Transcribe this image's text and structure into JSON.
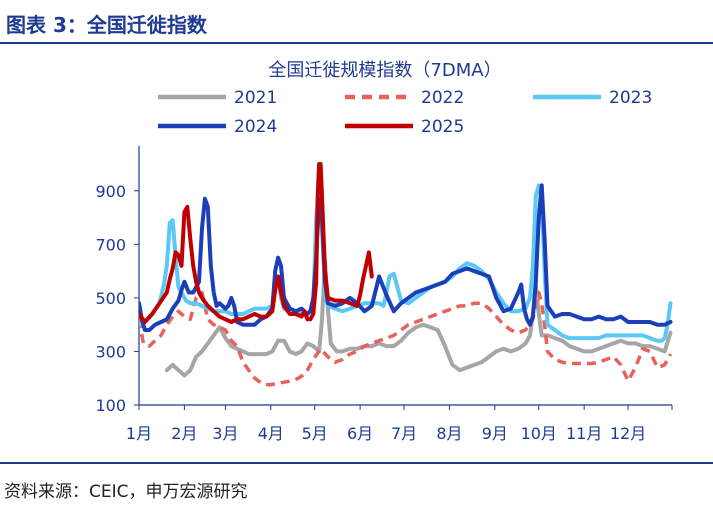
{
  "figure": {
    "title": "图表 3：全国迁徙指数",
    "source": "资料来源：CEIC，申万宏源研究"
  },
  "colors": {
    "accent": "#1f3a93",
    "axis": "#1f3a93",
    "text": "#1f3a93"
  },
  "chart_data": {
    "type": "line",
    "title": "全国迁徙规模指数（7DMA）",
    "xlabel": "",
    "ylabel": "",
    "x_unit": "day_of_year",
    "xlim": [
      1,
      365
    ],
    "ylim": [
      100,
      1000
    ],
    "yticks": [
      100,
      300,
      500,
      700,
      900
    ],
    "xtick_labels": [
      "1月",
      "2月",
      "3月",
      "4月",
      "5月",
      "6月",
      "7月",
      "8月",
      "9月",
      "10月",
      "11月",
      "12月"
    ],
    "xtick_days": [
      1,
      32,
      60,
      91,
      121,
      152,
      182,
      213,
      244,
      274,
      305,
      335
    ],
    "grid": false,
    "legend_position": "top",
    "series": [
      {
        "name": "2021",
        "color": "#a6a6a6",
        "dash": "",
        "width": 4,
        "x": [
          20,
          24,
          28,
          32,
          36,
          40,
          44,
          48,
          52,
          56,
          60,
          64,
          68,
          72,
          76,
          80,
          84,
          88,
          92,
          96,
          100,
          104,
          108,
          112,
          116,
          120,
          124,
          126,
          128,
          130,
          132,
          136,
          140,
          145,
          150,
          155,
          160,
          165,
          170,
          175,
          180,
          185,
          190,
          195,
          200,
          205,
          210,
          215,
          220,
          225,
          230,
          235,
          240,
          245,
          250,
          255,
          260,
          265,
          268,
          270,
          272,
          274,
          276,
          280,
          285,
          290,
          295,
          300,
          305,
          310,
          315,
          320,
          325,
          330,
          335,
          340,
          345,
          350,
          355,
          360,
          364
        ],
        "y": [
          230,
          250,
          230,
          210,
          230,
          280,
          300,
          330,
          360,
          390,
          350,
          320,
          310,
          300,
          290,
          290,
          290,
          290,
          300,
          340,
          340,
          300,
          290,
          300,
          330,
          320,
          300,
          420,
          640,
          460,
          330,
          300,
          300,
          310,
          310,
          320,
          320,
          330,
          320,
          320,
          340,
          370,
          390,
          400,
          390,
          380,
          320,
          250,
          230,
          240,
          250,
          260,
          280,
          300,
          310,
          300,
          310,
          330,
          360,
          440,
          550,
          440,
          360,
          360,
          350,
          340,
          320,
          310,
          300,
          300,
          310,
          320,
          330,
          340,
          330,
          330,
          320,
          320,
          310,
          300,
          370
        ]
      },
      {
        "name": "2022",
        "color": "#e8625d",
        "dash": "9,6",
        "width": 3.5,
        "x": [
          1,
          4,
          8,
          12,
          16,
          20,
          24,
          28,
          32,
          36,
          40,
          44,
          48,
          52,
          56,
          60,
          64,
          68,
          72,
          76,
          80,
          85,
          90,
          95,
          100,
          105,
          110,
          115,
          120,
          125,
          130,
          135,
          140,
          145,
          150,
          155,
          160,
          165,
          170,
          175,
          180,
          185,
          190,
          195,
          200,
          205,
          210,
          215,
          220,
          225,
          230,
          235,
          240,
          245,
          250,
          255,
          260,
          265,
          270,
          272,
          274,
          276,
          278,
          280,
          285,
          290,
          295,
          300,
          305,
          310,
          315,
          320,
          325,
          330,
          335,
          340,
          345,
          350,
          355,
          360,
          364
        ],
        "y": [
          420,
          330,
          320,
          340,
          360,
          400,
          430,
          450,
          430,
          420,
          500,
          520,
          420,
          400,
          390,
          380,
          340,
          320,
          260,
          230,
          200,
          180,
          175,
          180,
          185,
          190,
          200,
          220,
          270,
          310,
          280,
          260,
          270,
          290,
          300,
          320,
          330,
          340,
          350,
          360,
          380,
          400,
          410,
          420,
          430,
          440,
          450,
          460,
          470,
          470,
          480,
          480,
          460,
          430,
          400,
          380,
          370,
          380,
          420,
          480,
          520,
          480,
          400,
          300,
          270,
          260,
          255,
          255,
          255,
          255,
          260,
          270,
          280,
          250,
          190,
          240,
          310,
          300,
          240,
          250,
          290
        ]
      },
      {
        "name": "2023",
        "color": "#5bc8f5",
        "dash": "",
        "width": 4,
        "x": [
          1,
          5,
          10,
          15,
          18,
          20,
          22,
          24,
          26,
          28,
          30,
          33,
          36,
          40,
          44,
          48,
          52,
          56,
          60,
          64,
          68,
          72,
          76,
          80,
          84,
          88,
          92,
          94,
          96,
          98,
          100,
          104,
          108,
          112,
          116,
          118,
          120,
          122,
          124,
          126,
          128,
          130,
          135,
          140,
          145,
          150,
          155,
          160,
          165,
          168,
          170,
          172,
          175,
          180,
          185,
          190,
          195,
          200,
          205,
          210,
          215,
          220,
          225,
          230,
          235,
          240,
          245,
          250,
          255,
          260,
          265,
          268,
          270,
          272,
          274,
          276,
          278,
          280,
          285,
          290,
          295,
          300,
          305,
          310,
          315,
          320,
          325,
          330,
          335,
          340,
          345,
          350,
          355,
          358,
          360,
          362,
          364
        ],
        "y": [
          400,
          410,
          440,
          480,
          550,
          620,
          780,
          790,
          650,
          540,
          520,
          490,
          480,
          480,
          470,
          460,
          450,
          450,
          450,
          440,
          440,
          440,
          450,
          460,
          460,
          460,
          470,
          560,
          580,
          500,
          460,
          460,
          450,
          440,
          440,
          450,
          470,
          800,
          900,
          760,
          520,
          470,
          460,
          450,
          460,
          470,
          480,
          480,
          480,
          470,
          520,
          580,
          590,
          490,
          480,
          500,
          520,
          540,
          550,
          560,
          580,
          610,
          630,
          620,
          600,
          570,
          520,
          480,
          450,
          450,
          460,
          500,
          620,
          880,
          920,
          870,
          600,
          400,
          380,
          360,
          350,
          350,
          350,
          350,
          350,
          360,
          360,
          360,
          360,
          360,
          360,
          350,
          340,
          340,
          350,
          400,
          480
        ]
      },
      {
        "name": "2024",
        "color": "#1a3fb8",
        "dash": "",
        "width": 4,
        "x": [
          1,
          3,
          5,
          8,
          12,
          16,
          20,
          24,
          28,
          30,
          32,
          35,
          38,
          40,
          42,
          44,
          46,
          48,
          50,
          52,
          54,
          56,
          58,
          60,
          62,
          64,
          66,
          68,
          72,
          76,
          80,
          84,
          88,
          92,
          94,
          96,
          98,
          100,
          104,
          108,
          112,
          116,
          118,
          120,
          122,
          124,
          126,
          128,
          130,
          135,
          140,
          145,
          150,
          155,
          160,
          165,
          170,
          175,
          180,
          185,
          190,
          195,
          200,
          205,
          210,
          215,
          220,
          225,
          230,
          235,
          240,
          245,
          250,
          255,
          260,
          262,
          264,
          266,
          268,
          270,
          272,
          274,
          276,
          278,
          280,
          285,
          290,
          295,
          300,
          305,
          310,
          315,
          320,
          325,
          330,
          335,
          340,
          345,
          350,
          355,
          360,
          364
        ],
        "y": [
          480,
          420,
          380,
          380,
          400,
          410,
          420,
          460,
          490,
          530,
          560,
          520,
          520,
          540,
          560,
          760,
          870,
          840,
          620,
          520,
          470,
          480,
          470,
          460,
          470,
          500,
          470,
          410,
          400,
          400,
          400,
          420,
          430,
          460,
          600,
          650,
          620,
          500,
          460,
          450,
          460,
          440,
          450,
          500,
          650,
          870,
          800,
          560,
          480,
          470,
          480,
          500,
          480,
          450,
          470,
          580,
          510,
          450,
          480,
          500,
          520,
          530,
          540,
          550,
          560,
          590,
          600,
          610,
          600,
          590,
          580,
          500,
          450,
          460,
          520,
          550,
          460,
          420,
          400,
          430,
          560,
          800,
          920,
          720,
          470,
          430,
          440,
          440,
          430,
          420,
          420,
          430,
          420,
          420,
          430,
          410,
          410,
          410,
          410,
          400,
          400,
          410
        ]
      },
      {
        "name": "2025",
        "color": "#c00000",
        "dash": "",
        "width": 4,
        "x": [
          1,
          5,
          10,
          15,
          20,
          22,
          24,
          26,
          28,
          30,
          32,
          34,
          36,
          38,
          40,
          42,
          44,
          48,
          52,
          56,
          60,
          64,
          68,
          72,
          76,
          80,
          84,
          88,
          92,
          94,
          96,
          98,
          100,
          104,
          108,
          112,
          114,
          116,
          118,
          120,
          122,
          123,
          124,
          125,
          126,
          128,
          130,
          135,
          140,
          145,
          150,
          152,
          154,
          156,
          158,
          160
        ],
        "y": [
          440,
          410,
          440,
          480,
          520,
          570,
          610,
          670,
          660,
          620,
          820,
          840,
          720,
          620,
          560,
          520,
          500,
          470,
          450,
          430,
          420,
          410,
          420,
          420,
          430,
          440,
          430,
          430,
          450,
          530,
          580,
          520,
          470,
          440,
          440,
          430,
          450,
          420,
          420,
          440,
          560,
          870,
          1000,
          1000,
          880,
          600,
          500,
          490,
          490,
          480,
          470,
          510,
          570,
          620,
          670,
          580
        ]
      }
    ]
  }
}
